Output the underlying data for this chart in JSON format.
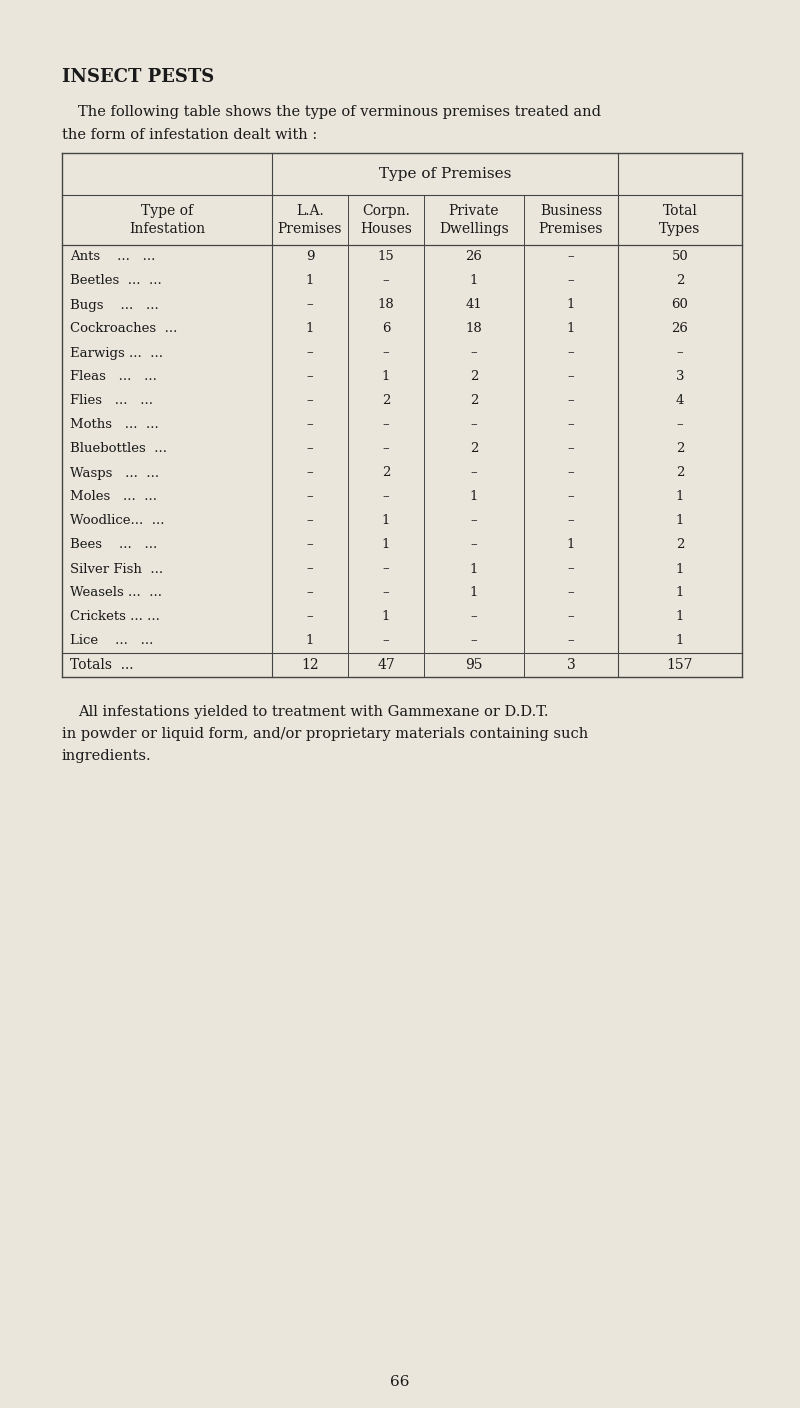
{
  "title": "INSECT PESTS",
  "intro_text1": "The following table shows the type of verminous premises treated and",
  "intro_text2": "the form of infestation dealt with :",
  "col_header_group": "Type of Premises",
  "rows": [
    [
      "Ants    ...   ...",
      "9",
      "15",
      "26",
      "–",
      "50"
    ],
    [
      "Beetles  ...  ...",
      "1",
      "–",
      "1",
      "–",
      "2"
    ],
    [
      "Bugs    ...   ...",
      "–",
      "18",
      "41",
      "1",
      "60"
    ],
    [
      "Cockroaches  ...",
      "1",
      "6",
      "18",
      "1",
      "26"
    ],
    [
      "Earwigs ...  ...",
      "–",
      "–",
      "–",
      "–",
      "–"
    ],
    [
      "Fleas   ...   ...",
      "–",
      "1",
      "2",
      "–",
      "3"
    ],
    [
      "Flies   ...   ...",
      "–",
      "2",
      "2",
      "–",
      "4"
    ],
    [
      "Moths   ...  ...",
      "–",
      "–",
      "–",
      "–",
      "–"
    ],
    [
      "Bluebottles  ...",
      "–",
      "–",
      "2",
      "–",
      "2"
    ],
    [
      "Wasps   ...  ...",
      "–",
      "2",
      "–",
      "–",
      "2"
    ],
    [
      "Moles   ...  ...",
      "–",
      "–",
      "1",
      "–",
      "1"
    ],
    [
      "Woodlice...  ...",
      "–",
      "1",
      "–",
      "–",
      "1"
    ],
    [
      "Bees    ...   ...",
      "–",
      "1",
      "–",
      "1",
      "2"
    ],
    [
      "Silver Fish  ...",
      "–",
      "–",
      "1",
      "–",
      "1"
    ],
    [
      "Weasels ...  ...",
      "–",
      "–",
      "1",
      "–",
      "1"
    ],
    [
      "Crickets ... ...",
      "–",
      "1",
      "–",
      "–",
      "1"
    ],
    [
      "Lice    ...   ...",
      "1",
      "–",
      "–",
      "–",
      "1"
    ]
  ],
  "totals_row": [
    "Totals  ...",
    "12",
    "47",
    "95",
    "3",
    "157"
  ],
  "footer_text1": "All infestations yielded to treatment with Gammexane or D.D.T.",
  "footer_text2": "in powder or liquid form, and/or proprietary materials containing such",
  "footer_text3": "ingredients.",
  "page_number": "66",
  "bg_color": "#eae6db",
  "text_color": "#1a1a1a",
  "table_line_color": "#444444"
}
